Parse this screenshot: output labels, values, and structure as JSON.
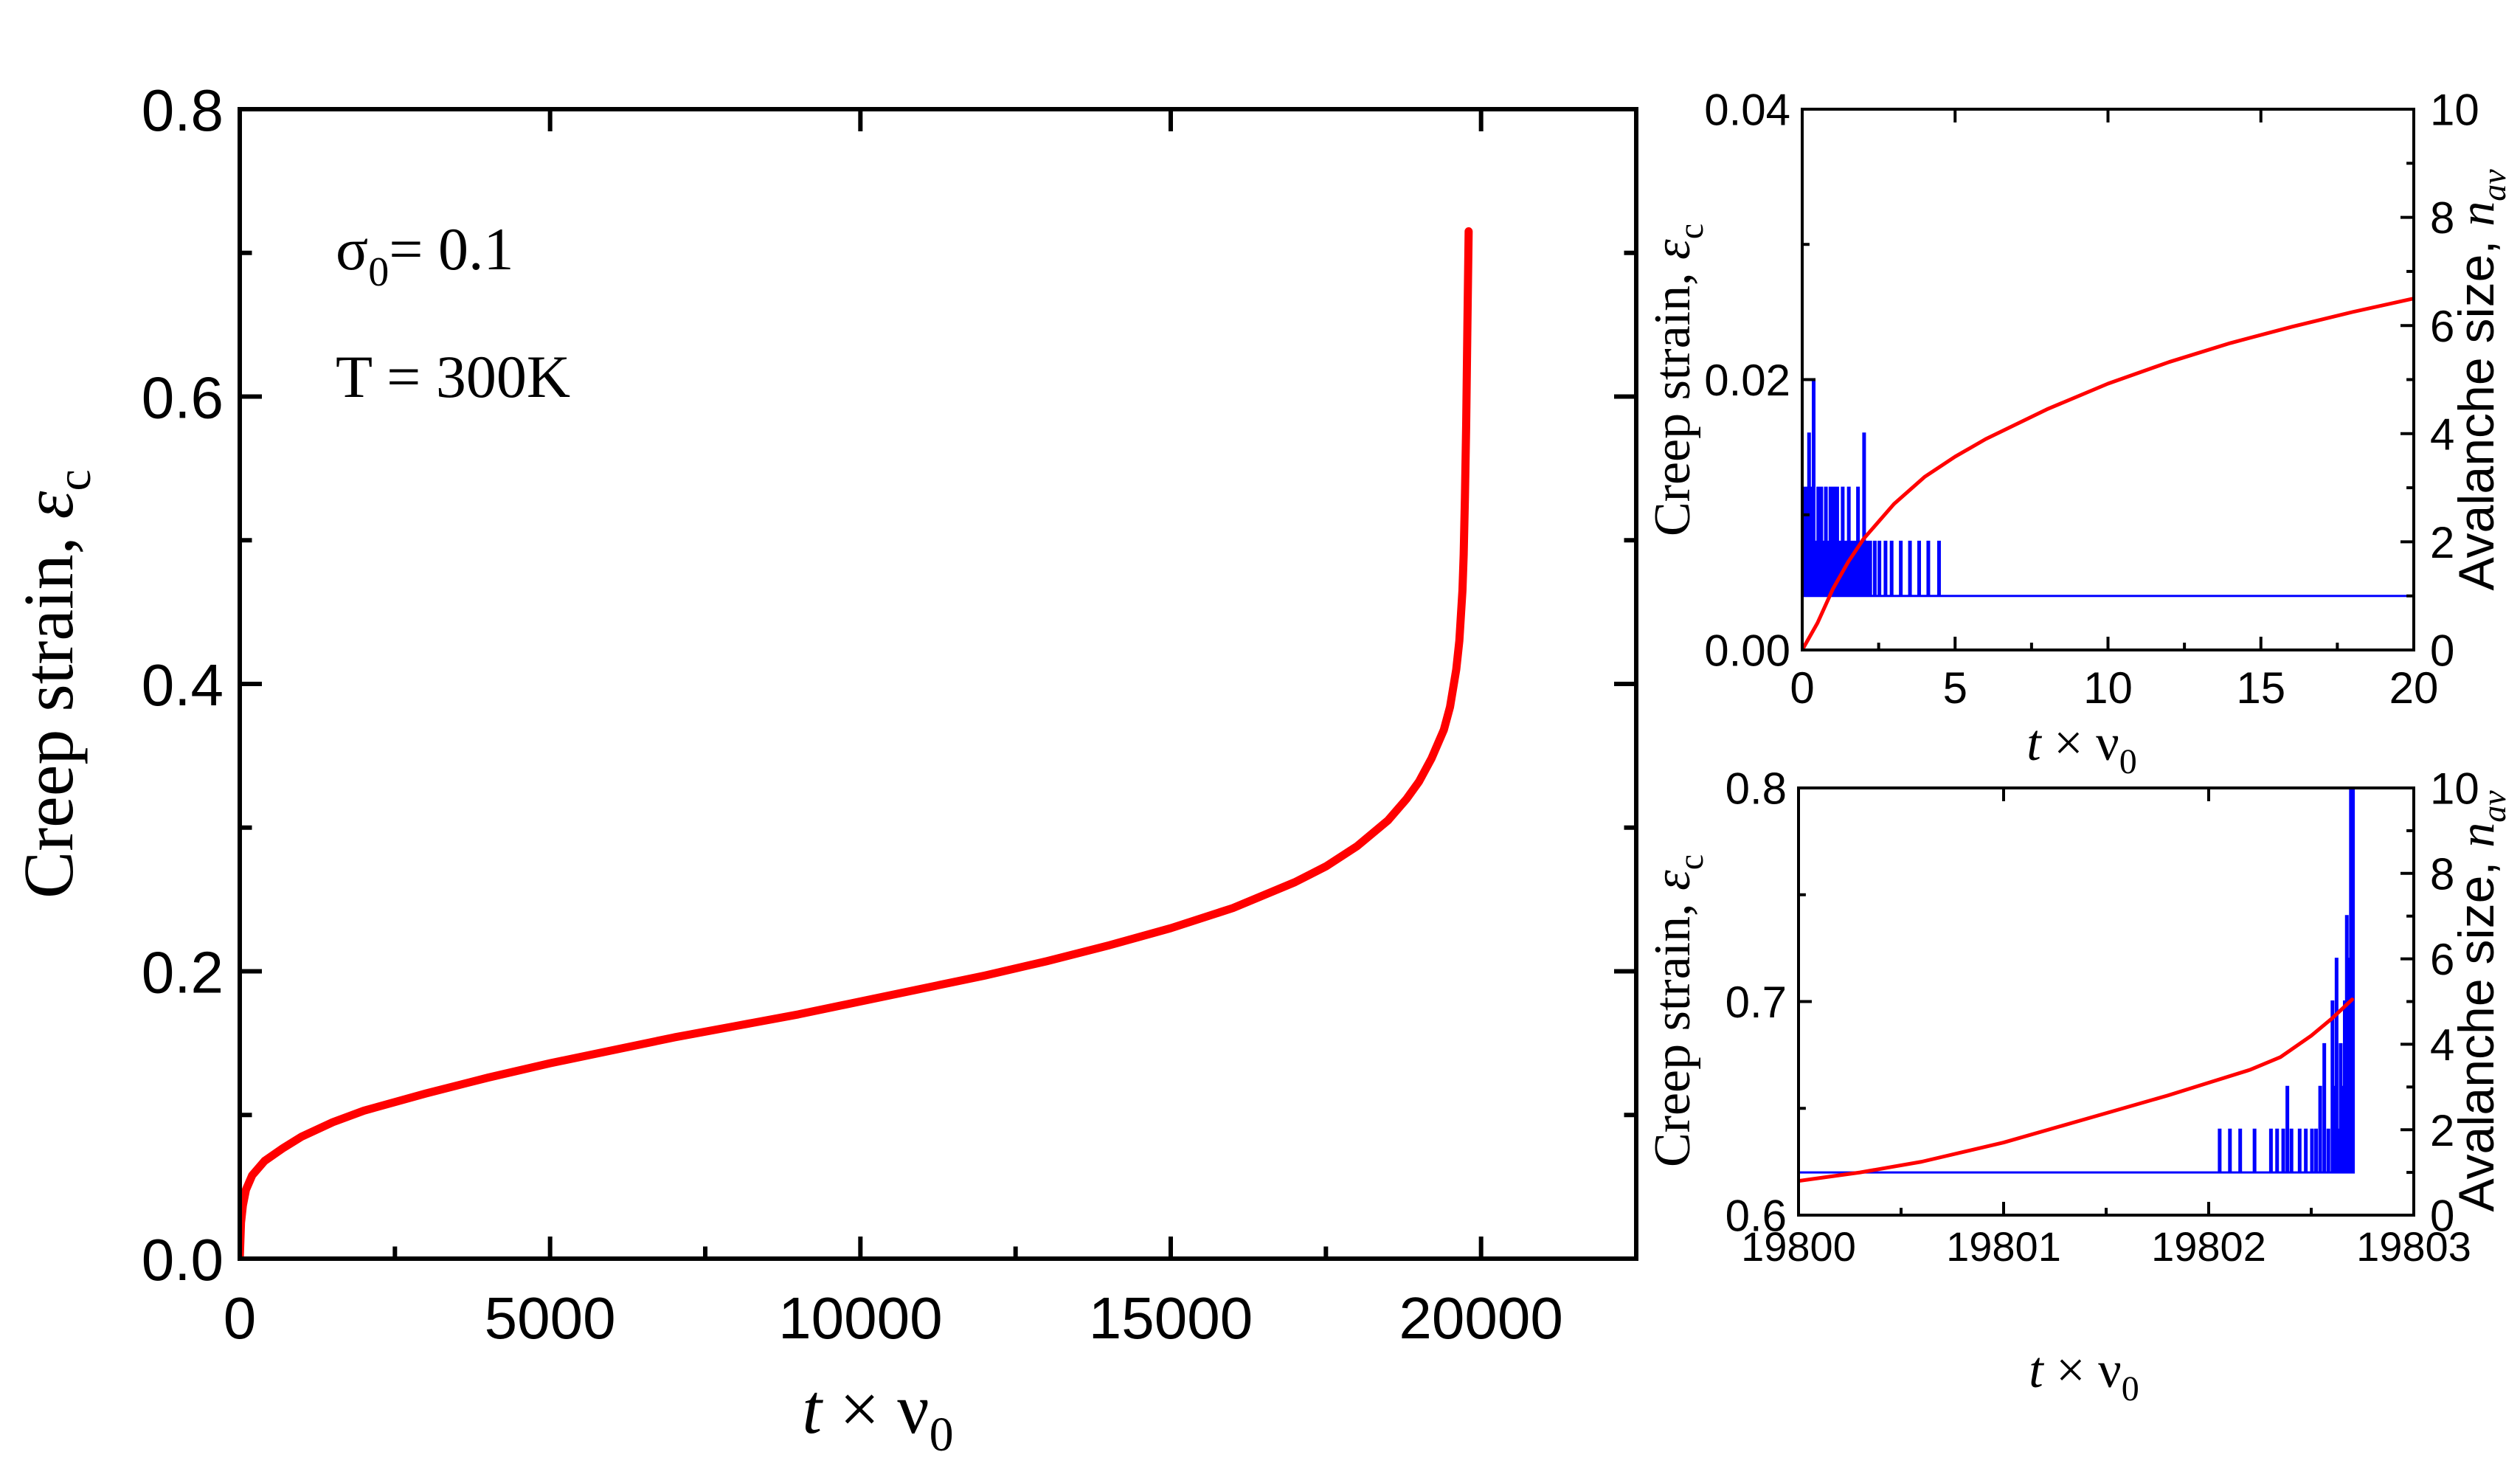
{
  "chart_data": [
    {
      "id": "main",
      "type": "line",
      "xlabel": {
        "var": "t",
        "times": "×",
        "sym": "ν",
        "sub": "0"
      },
      "ylabel": {
        "text": "Creep strain, ",
        "sym": "ε",
        "sub": "c"
      },
      "xlim": [
        0,
        22500
      ],
      "ylim": [
        0,
        0.8
      ],
      "xticks": [
        0,
        5000,
        10000,
        15000,
        20000
      ],
      "yticks": [
        0.0,
        0.2,
        0.4,
        0.6,
        0.8
      ],
      "xtick_labels": [
        "0",
        "5000",
        "10000",
        "15000",
        "20000"
      ],
      "ytick_labels": [
        "0.0",
        "0.2",
        "0.4",
        "0.6",
        "0.8"
      ],
      "annotation1": {
        "sym": "σ",
        "sub": "0",
        "rest": "= 0.1"
      },
      "annotation2": "T = 300K",
      "series": [
        {
          "name": "creep strain",
          "color": "#ff0000",
          "x": [
            0,
            20,
            50,
            100,
            200,
            400,
            700,
            1000,
            1500,
            2000,
            3000,
            4000,
            5000,
            6000,
            7000,
            8000,
            9000,
            10000,
            11000,
            12000,
            13000,
            14000,
            15000,
            16000,
            17000,
            17500,
            18000,
            18500,
            18800,
            19000,
            19200,
            19400,
            19500,
            19600,
            19650,
            19700,
            19720,
            19740,
            19760,
            19780,
            19800
          ],
          "y": [
            0.0,
            0.025,
            0.037,
            0.048,
            0.058,
            0.068,
            0.077,
            0.085,
            0.095,
            0.103,
            0.115,
            0.126,
            0.136,
            0.145,
            0.154,
            0.162,
            0.17,
            0.179,
            0.188,
            0.197,
            0.207,
            0.218,
            0.23,
            0.244,
            0.262,
            0.273,
            0.287,
            0.305,
            0.32,
            0.332,
            0.348,
            0.368,
            0.384,
            0.41,
            0.43,
            0.465,
            0.49,
            0.53,
            0.58,
            0.65,
            0.715
          ]
        }
      ]
    },
    {
      "id": "inset_top",
      "type": "line",
      "xlabel": {
        "var": "t",
        "times": "×",
        "sym": "ν",
        "sub": "0"
      },
      "ylabel": {
        "text": "Creep strain, ",
        "sym": "ε",
        "sub": "c"
      },
      "y2label": {
        "text": "Avalanche size, ",
        "var": "n",
        "sub": "av"
      },
      "xlim": [
        0,
        20
      ],
      "ylim": [
        0,
        0.04
      ],
      "y2lim": [
        0,
        10
      ],
      "xticks": [
        0,
        5,
        10,
        15,
        20
      ],
      "yticks": [
        0.0,
        0.02,
        0.04
      ],
      "y2ticks": [
        0,
        2,
        4,
        6,
        8,
        10
      ],
      "xtick_labels": [
        "0",
        "5",
        "10",
        "15",
        "20"
      ],
      "ytick_labels": [
        "0.00",
        "0.02",
        "0.04"
      ],
      "y2tick_labels": [
        "0",
        "2",
        "4",
        "6",
        "8",
        "10"
      ],
      "series": [
        {
          "name": "creep strain",
          "color": "#ff0000",
          "axis": "left",
          "x": [
            0,
            0.5,
            1,
            1.5,
            2,
            3,
            4,
            5,
            6,
            8,
            10,
            12,
            14,
            16,
            18,
            20
          ],
          "y": [
            0.0,
            0.002,
            0.0045,
            0.0065,
            0.0082,
            0.0108,
            0.0128,
            0.0143,
            0.0156,
            0.0178,
            0.0197,
            0.0213,
            0.0227,
            0.0239,
            0.025,
            0.026
          ]
        },
        {
          "name": "avalanche size",
          "color": "#0000ff",
          "axis": "right",
          "baseline": 1,
          "x_end": 20,
          "spikes": [
            [
              0.05,
              3
            ],
            [
              0.1,
              2
            ],
            [
              0.15,
              3
            ],
            [
              0.2,
              4
            ],
            [
              0.25,
              2
            ],
            [
              0.3,
              3
            ],
            [
              0.35,
              5
            ],
            [
              0.42,
              2
            ],
            [
              0.5,
              3
            ],
            [
              0.55,
              2
            ],
            [
              0.6,
              3
            ],
            [
              0.68,
              2
            ],
            [
              0.75,
              3
            ],
            [
              0.82,
              2
            ],
            [
              0.9,
              3
            ],
            [
              0.95,
              2
            ],
            [
              1.0,
              3
            ],
            [
              1.05,
              2
            ],
            [
              1.12,
              3
            ],
            [
              1.2,
              2
            ],
            [
              1.3,
              3
            ],
            [
              1.4,
              2
            ],
            [
              1.5,
              3
            ],
            [
              1.6,
              2
            ],
            [
              1.7,
              2
            ],
            [
              1.8,
              3
            ],
            [
              1.9,
              2
            ],
            [
              2.0,
              4
            ],
            [
              2.1,
              2
            ],
            [
              2.2,
              2
            ],
            [
              2.35,
              2
            ],
            [
              2.5,
              2
            ],
            [
              2.7,
              2
            ],
            [
              2.9,
              2
            ],
            [
              3.2,
              2
            ],
            [
              3.5,
              2
            ],
            [
              3.8,
              2
            ],
            [
              4.1,
              2
            ],
            [
              4.45,
              2
            ]
          ]
        }
      ]
    },
    {
      "id": "inset_bottom",
      "type": "line",
      "xlabel": {
        "var": "t",
        "times": "×",
        "sym": "ν",
        "sub": "0"
      },
      "ylabel": {
        "text": "Creep strain, ",
        "sym": "ε",
        "sub": "c"
      },
      "y2label": {
        "text": "Avalanche size, ",
        "var": "n",
        "sub": "av"
      },
      "xlim": [
        19800,
        19803
      ],
      "ylim": [
        0.6,
        0.8
      ],
      "y2lim": [
        0,
        10
      ],
      "xticks": [
        19800,
        19801,
        19802,
        19803
      ],
      "yticks": [
        0.6,
        0.7,
        0.8
      ],
      "y2ticks": [
        0,
        2,
        4,
        6,
        8,
        10
      ],
      "xtick_labels": [
        "19800",
        "19801",
        "19802",
        "19803"
      ],
      "ytick_labels": [
        "0.6",
        "0.7",
        "0.8"
      ],
      "y2tick_labels": [
        "0",
        "2",
        "4",
        "6",
        "8",
        "10"
      ],
      "series": [
        {
          "name": "creep strain",
          "color": "#ff0000",
          "axis": "left",
          "x": [
            19800,
            19800.3,
            19800.6,
            19801,
            19801.4,
            19801.8,
            19802,
            19802.2,
            19802.35,
            19802.5,
            19802.6,
            19802.7
          ],
          "y": [
            0.616,
            0.62,
            0.625,
            0.634,
            0.645,
            0.656,
            0.662,
            0.668,
            0.674,
            0.684,
            0.692,
            0.701
          ]
        },
        {
          "name": "avalanche size",
          "color": "#0000ff",
          "axis": "right",
          "baseline": 1,
          "x_start": 19800,
          "x_end": 19802.7,
          "spikes": [
            [
              19802.05,
              2
            ],
            [
              19802.1,
              2
            ],
            [
              19802.15,
              2
            ],
            [
              19802.22,
              2
            ],
            [
              19802.3,
              2
            ],
            [
              19802.33,
              2
            ],
            [
              19802.36,
              2
            ],
            [
              19802.38,
              3
            ],
            [
              19802.4,
              2
            ],
            [
              19802.44,
              2
            ],
            [
              19802.47,
              2
            ],
            [
              19802.5,
              2
            ],
            [
              19802.52,
              2
            ],
            [
              19802.54,
              3
            ],
            [
              19802.56,
              4
            ],
            [
              19802.58,
              2
            ],
            [
              19802.6,
              5
            ],
            [
              19802.61,
              3
            ],
            [
              19802.62,
              6
            ],
            [
              19802.63,
              2
            ],
            [
              19802.64,
              4
            ],
            [
              19802.65,
              3
            ],
            [
              19802.66,
              5
            ],
            [
              19802.67,
              7
            ],
            [
              19802.68,
              6
            ],
            [
              19802.69,
              10
            ],
            [
              19802.7,
              10
            ]
          ]
        }
      ]
    }
  ]
}
